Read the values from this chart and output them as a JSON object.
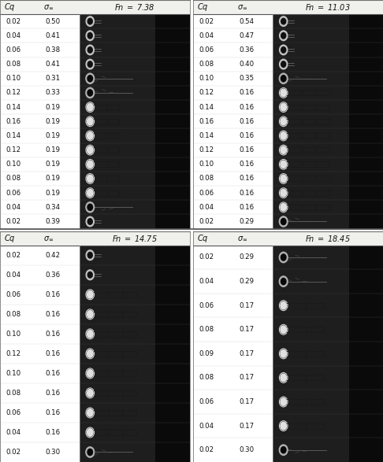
{
  "panels": [
    {
      "fn_label": "Fn",
      "fn_val": "7.38",
      "rows": [
        {
          "cq": "0.02",
          "sigma": "0.50"
        },
        {
          "cq": "0.04",
          "sigma": "0.41"
        },
        {
          "cq": "0.06",
          "sigma": "0.38"
        },
        {
          "cq": "0.08",
          "sigma": "0.41"
        },
        {
          "cq": "0.10",
          "sigma": "0.31"
        },
        {
          "cq": "0.12",
          "sigma": "0.33"
        },
        {
          "cq": "0.14",
          "sigma": "0.19"
        },
        {
          "cq": "0.16",
          "sigma": "0.19"
        },
        {
          "cq": "0.14",
          "sigma": "0.19"
        },
        {
          "cq": "0.12",
          "sigma": "0.19"
        },
        {
          "cq": "0.10",
          "sigma": "0.19"
        },
        {
          "cq": "0.08",
          "sigma": "0.19"
        },
        {
          "cq": "0.06",
          "sigma": "0.19"
        },
        {
          "cq": "0.04",
          "sigma": "0.34"
        },
        {
          "cq": "0.02",
          "sigma": "0.39"
        }
      ]
    },
    {
      "fn_label": "Fn",
      "fn_val": "11.03",
      "rows": [
        {
          "cq": "0.02",
          "sigma": "0.54"
        },
        {
          "cq": "0.04",
          "sigma": "0.47"
        },
        {
          "cq": "0.06",
          "sigma": "0.36"
        },
        {
          "cq": "0.08",
          "sigma": "0.40"
        },
        {
          "cq": "0.10",
          "sigma": "0.35"
        },
        {
          "cq": "0.12",
          "sigma": "0.16"
        },
        {
          "cq": "0.14",
          "sigma": "0.16"
        },
        {
          "cq": "0.16",
          "sigma": "0.16"
        },
        {
          "cq": "0.14",
          "sigma": "0.16"
        },
        {
          "cq": "0.12",
          "sigma": "0.16"
        },
        {
          "cq": "0.10",
          "sigma": "0.16"
        },
        {
          "cq": "0.08",
          "sigma": "0.16"
        },
        {
          "cq": "0.06",
          "sigma": "0.16"
        },
        {
          "cq": "0.04",
          "sigma": "0.16"
        },
        {
          "cq": "0.02",
          "sigma": "0.29"
        }
      ]
    },
    {
      "fn_label": "Fn",
      "fn_val": "14.75",
      "rows": [
        {
          "cq": "0.02",
          "sigma": "0.42"
        },
        {
          "cq": "0.04",
          "sigma": "0.36"
        },
        {
          "cq": "0.06",
          "sigma": "0.16"
        },
        {
          "cq": "0.08",
          "sigma": "0.16"
        },
        {
          "cq": "0.10",
          "sigma": "0.16"
        },
        {
          "cq": "0.12",
          "sigma": "0.16"
        },
        {
          "cq": "0.10",
          "sigma": "0.16"
        },
        {
          "cq": "0.08",
          "sigma": "0.16"
        },
        {
          "cq": "0.06",
          "sigma": "0.16"
        },
        {
          "cq": "0.04",
          "sigma": "0.16"
        },
        {
          "cq": "0.02",
          "sigma": "0.30"
        }
      ]
    },
    {
      "fn_label": "Fn",
      "fn_val": "18.45",
      "rows": [
        {
          "cq": "0.02",
          "sigma": "0.29"
        },
        {
          "cq": "0.04",
          "sigma": "0.29"
        },
        {
          "cq": "0.06",
          "sigma": "0.17"
        },
        {
          "cq": "0.08",
          "sigma": "0.17"
        },
        {
          "cq": "0.09",
          "sigma": "0.17"
        },
        {
          "cq": "0.08",
          "sigma": "0.17"
        },
        {
          "cq": "0.06",
          "sigma": "0.17"
        },
        {
          "cq": "0.04",
          "sigma": "0.17"
        },
        {
          "cq": "0.02",
          "sigma": "0.30"
        }
      ]
    }
  ],
  "bg_color": "#ffffff",
  "header_bg": "#f0f0ec",
  "divider_color": "#888888",
  "text_color": "#111111",
  "photo_bg_dark": "#2a2a2a",
  "photo_bg_mid": "#555555",
  "photo_bg_light": "#888888",
  "cavity_color": "#e8e8e8",
  "font_size_header": 7.0,
  "font_size_data": 6.2
}
